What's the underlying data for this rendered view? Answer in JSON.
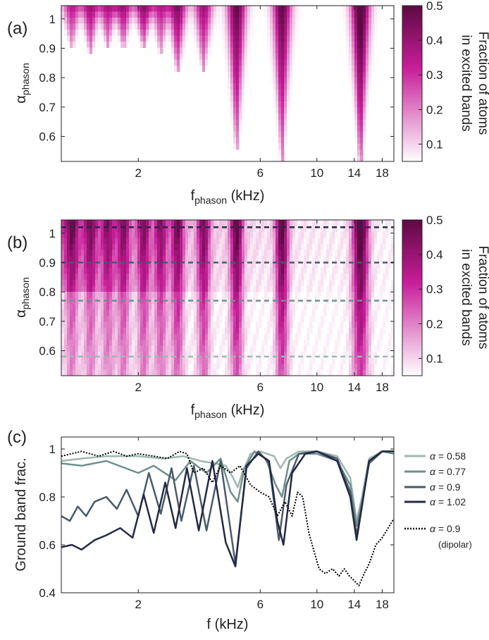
{
  "colors": {
    "cmap_low": "#ffffff",
    "cmap_high": "#5e0a43",
    "cmap_mid": "#c81e9a",
    "axis": "#222222",
    "series": [
      "#9fb8b0",
      "#6f8f8c",
      "#4a5a6a",
      "#242a44",
      "#000000"
    ]
  },
  "chart_data": [
    {
      "id": "a",
      "panel_label": "(a)",
      "type": "heatmap",
      "x_scale": "log",
      "xlim": [
        1.0,
        20.0
      ],
      "ylim": [
        0.515,
        1.045
      ],
      "xticks": [
        2,
        6,
        10,
        14,
        18
      ],
      "xtick_labels": [
        "2",
        "6",
        "10",
        "14",
        "18"
      ],
      "yticks": [
        0.6,
        0.7,
        0.8,
        0.9,
        1.0
      ],
      "ytick_labels": [
        "0.6",
        "0.7",
        "0.8",
        "0.9",
        "1"
      ],
      "xlabel_main": "f",
      "xlabel_sub": "phason",
      "xlabel_unit": " (kHz)",
      "ylabel_main": "α",
      "ylabel_sub": "phason",
      "colorbar": {
        "range": [
          0.05,
          0.5
        ],
        "ticks": [
          0.1,
          0.2,
          0.3,
          0.4,
          0.5
        ],
        "tick_labels": [
          "0.1",
          "0.2",
          "0.3",
          "0.4",
          "0.5"
        ],
        "label_line1": "Fraction of atoms",
        "label_line2": "in excited bands"
      },
      "resonances": [
        {
          "f": 1.1,
          "amp": 0.3,
          "alpha_min": 0.9
        },
        {
          "f": 1.3,
          "amp": 0.35,
          "alpha_min": 0.88
        },
        {
          "f": 1.52,
          "amp": 0.32,
          "alpha_min": 0.9
        },
        {
          "f": 1.75,
          "amp": 0.35,
          "alpha_min": 0.9
        },
        {
          "f": 2.1,
          "amp": 0.38,
          "alpha_min": 0.9
        },
        {
          "f": 2.45,
          "amp": 0.3,
          "alpha_min": 0.88
        },
        {
          "f": 2.85,
          "amp": 0.4,
          "alpha_min": 0.82
        },
        {
          "f": 3.6,
          "amp": 0.35,
          "alpha_min": 0.82
        },
        {
          "f": 4.85,
          "amp": 0.45,
          "alpha_min": 0.56
        },
        {
          "f": 7.3,
          "amp": 0.45,
          "alpha_min": 0.52
        },
        {
          "f": 14.8,
          "amp": 0.52,
          "alpha_min": 0.5
        }
      ]
    },
    {
      "id": "b",
      "panel_label": "(b)",
      "type": "heatmap",
      "x_scale": "log",
      "xlim": [
        1.0,
        20.0
      ],
      "ylim": [
        0.515,
        1.045
      ],
      "xticks": [
        2,
        6,
        10,
        14,
        18
      ],
      "xtick_labels": [
        "2",
        "6",
        "10",
        "14",
        "18"
      ],
      "yticks": [
        0.6,
        0.7,
        0.8,
        0.9,
        1.0
      ],
      "ytick_labels": [
        "0.6",
        "0.7",
        "0.8",
        "0.9",
        "1"
      ],
      "xlabel_main": "f",
      "xlabel_sub": "phason",
      "xlabel_unit": " (kHz)",
      "ylabel_main": "α",
      "ylabel_sub": "phason",
      "colorbar": {
        "range": [
          0.05,
          0.5
        ],
        "ticks": [
          0.1,
          0.2,
          0.3,
          0.4,
          0.5
        ],
        "tick_labels": [
          "0.1",
          "0.2",
          "0.3",
          "0.4",
          "0.5"
        ],
        "label_line1": "Fraction of atoms",
        "label_line2": "in excited bands"
      },
      "dashed_lines": [
        {
          "alpha": 1.02,
          "color_index": 3
        },
        {
          "alpha": 0.9,
          "color_index": 2
        },
        {
          "alpha": 0.77,
          "color_index": 1
        },
        {
          "alpha": 0.58,
          "color_index": 0
        }
      ],
      "resonances": [
        {
          "f": 1.1,
          "amp": 0.25
        },
        {
          "f": 1.3,
          "amp": 0.25
        },
        {
          "f": 1.52,
          "amp": 0.25
        },
        {
          "f": 1.75,
          "amp": 0.28
        },
        {
          "f": 2.1,
          "amp": 0.3
        },
        {
          "f": 2.45,
          "amp": 0.3
        },
        {
          "f": 2.85,
          "amp": 0.35
        },
        {
          "f": 3.6,
          "amp": 0.35
        },
        {
          "f": 4.85,
          "amp": 0.42
        },
        {
          "f": 7.3,
          "amp": 0.45
        },
        {
          "f": 14.8,
          "amp": 0.5
        }
      ]
    },
    {
      "id": "c",
      "panel_label": "(c)",
      "type": "line",
      "x_scale": "log",
      "xlim": [
        1.0,
        20.0
      ],
      "ylim": [
        0.4,
        1.05
      ],
      "xticks": [
        2,
        6,
        10,
        14,
        18
      ],
      "xtick_labels": [
        "2",
        "6",
        "10",
        "14",
        "18"
      ],
      "yticks": [
        0.4,
        0.6,
        0.8,
        1.0
      ],
      "ytick_labels": [
        "0.4",
        "0.6",
        "0.8",
        "1"
      ],
      "xlabel": "f (kHz)",
      "ylabel": "Ground band frac.",
      "legend_position": "right",
      "series": [
        {
          "name": "α = 0.58",
          "legend_alpha": "α",
          "legend_value": " = 0.58",
          "style": "solid",
          "color_index": 0,
          "points": [
            [
              1.0,
              0.95
            ],
            [
              1.2,
              0.96
            ],
            [
              1.5,
              0.97
            ],
            [
              2.0,
              0.97
            ],
            [
              2.5,
              0.96
            ],
            [
              3.0,
              0.97
            ],
            [
              3.5,
              0.95
            ],
            [
              4.0,
              0.94
            ],
            [
              4.4,
              0.93
            ],
            [
              4.7,
              0.88
            ],
            [
              4.9,
              0.84
            ],
            [
              5.1,
              0.9
            ],
            [
              5.5,
              0.98
            ],
            [
              6.0,
              0.99
            ],
            [
              6.8,
              0.97
            ],
            [
              7.2,
              0.92
            ],
            [
              7.6,
              0.96
            ],
            [
              8.5,
              0.99
            ],
            [
              10,
              0.99
            ],
            [
              12,
              0.97
            ],
            [
              13.5,
              0.88
            ],
            [
              14.3,
              0.7
            ],
            [
              15.0,
              0.8
            ],
            [
              16,
              0.96
            ],
            [
              18,
              0.99
            ],
            [
              20,
              0.99
            ]
          ]
        },
        {
          "name": "α = 0.77",
          "legend_alpha": "α",
          "legend_value": " = 0.77",
          "style": "solid",
          "color_index": 1,
          "points": [
            [
              1.0,
              0.94
            ],
            [
              1.2,
              0.93
            ],
            [
              1.5,
              0.95
            ],
            [
              2.0,
              0.9
            ],
            [
              2.3,
              0.93
            ],
            [
              2.8,
              0.87
            ],
            [
              3.2,
              0.95
            ],
            [
              3.7,
              0.9
            ],
            [
              4.2,
              0.96
            ],
            [
              4.6,
              0.82
            ],
            [
              4.9,
              0.78
            ],
            [
              5.2,
              0.92
            ],
            [
              5.7,
              0.99
            ],
            [
              6.3,
              0.96
            ],
            [
              6.9,
              0.85
            ],
            [
              7.3,
              0.8
            ],
            [
              7.8,
              0.95
            ],
            [
              8.5,
              0.98
            ],
            [
              10,
              0.98
            ],
            [
              12,
              0.95
            ],
            [
              13.5,
              0.85
            ],
            [
              14.3,
              0.68
            ],
            [
              15.0,
              0.78
            ],
            [
              16,
              0.95
            ],
            [
              18,
              0.99
            ],
            [
              20,
              0.98
            ]
          ]
        },
        {
          "name": "α = 0.9",
          "legend_alpha": "α",
          "legend_value": " = 0.9",
          "style": "solid",
          "color_index": 2,
          "points": [
            [
              1.0,
              0.72
            ],
            [
              1.08,
              0.7
            ],
            [
              1.16,
              0.76
            ],
            [
              1.25,
              0.72
            ],
            [
              1.35,
              0.78
            ],
            [
              1.5,
              0.8
            ],
            [
              1.65,
              0.75
            ],
            [
              1.8,
              0.83
            ],
            [
              2.0,
              0.72
            ],
            [
              2.2,
              0.9
            ],
            [
              2.45,
              0.73
            ],
            [
              2.7,
              0.92
            ],
            [
              2.95,
              0.7
            ],
            [
              3.3,
              0.93
            ],
            [
              3.7,
              0.66
            ],
            [
              4.2,
              0.95
            ],
            [
              4.8,
              0.52
            ],
            [
              5.3,
              0.92
            ],
            [
              5.9,
              0.99
            ],
            [
              6.5,
              0.94
            ],
            [
              7.1,
              0.62
            ],
            [
              7.6,
              0.85
            ],
            [
              8.5,
              0.98
            ],
            [
              10,
              0.99
            ],
            [
              12,
              0.96
            ],
            [
              13.5,
              0.82
            ],
            [
              14.3,
              0.64
            ],
            [
              15.0,
              0.77
            ],
            [
              16,
              0.94
            ],
            [
              18,
              0.99
            ],
            [
              20,
              0.99
            ]
          ]
        },
        {
          "name": "α = 1.02",
          "legend_alpha": "α",
          "legend_value": " = 1.02",
          "style": "solid",
          "color_index": 3,
          "points": [
            [
              1.0,
              0.59
            ],
            [
              1.1,
              0.6
            ],
            [
              1.2,
              0.58
            ],
            [
              1.35,
              0.62
            ],
            [
              1.5,
              0.64
            ],
            [
              1.7,
              0.67
            ],
            [
              1.9,
              0.63
            ],
            [
              2.1,
              0.81
            ],
            [
              2.3,
              0.65
            ],
            [
              2.55,
              0.86
            ],
            [
              2.8,
              0.67
            ],
            [
              3.1,
              0.92
            ],
            [
              3.45,
              0.66
            ],
            [
              3.9,
              0.95
            ],
            [
              4.4,
              0.61
            ],
            [
              4.8,
              0.51
            ],
            [
              5.3,
              0.93
            ],
            [
              5.9,
              0.98
            ],
            [
              6.5,
              0.95
            ],
            [
              7.0,
              0.7
            ],
            [
              7.4,
              0.6
            ],
            [
              8.0,
              0.9
            ],
            [
              9,
              0.98
            ],
            [
              10,
              0.99
            ],
            [
              12,
              0.95
            ],
            [
              13.5,
              0.8
            ],
            [
              14.3,
              0.62
            ],
            [
              15.0,
              0.76
            ],
            [
              16,
              0.95
            ],
            [
              18,
              0.99
            ],
            [
              20,
              0.99
            ]
          ]
        },
        {
          "name": "α = 0.9 (dipolar)",
          "legend_alpha": "α",
          "legend_value": " = 0.9",
          "legend_note": "(dipolar)",
          "style": "dotted",
          "color_index": 4,
          "points": [
            [
              1.0,
              0.97
            ],
            [
              1.2,
              0.99
            ],
            [
              1.4,
              0.97
            ],
            [
              1.6,
              0.99
            ],
            [
              1.8,
              0.97
            ],
            [
              2.0,
              0.98
            ],
            [
              2.3,
              0.97
            ],
            [
              2.6,
              0.96
            ],
            [
              2.9,
              0.99
            ],
            [
              3.1,
              0.98
            ],
            [
              3.3,
              0.9
            ],
            [
              3.6,
              0.92
            ],
            [
              3.9,
              0.86
            ],
            [
              4.2,
              0.93
            ],
            [
              4.6,
              0.9
            ],
            [
              5.0,
              0.93
            ],
            [
              5.5,
              0.85
            ],
            [
              6.0,
              0.82
            ],
            [
              6.5,
              0.8
            ],
            [
              7.0,
              0.72
            ],
            [
              7.5,
              0.78
            ],
            [
              8.0,
              0.72
            ],
            [
              8.4,
              0.82
            ],
            [
              8.8,
              0.8
            ],
            [
              9.3,
              0.65
            ],
            [
              9.7,
              0.58
            ],
            [
              10.2,
              0.5
            ],
            [
              10.8,
              0.48
            ],
            [
              11.5,
              0.5
            ],
            [
              12.2,
              0.47
            ],
            [
              12.8,
              0.5
            ],
            [
              13.4,
              0.47
            ],
            [
              14.0,
              0.45
            ],
            [
              14.6,
              0.43
            ],
            [
              15.3,
              0.48
            ],
            [
              16,
              0.52
            ],
            [
              17,
              0.6
            ],
            [
              18,
              0.63
            ],
            [
              19,
              0.67
            ],
            [
              20,
              0.71
            ]
          ]
        }
      ]
    }
  ]
}
